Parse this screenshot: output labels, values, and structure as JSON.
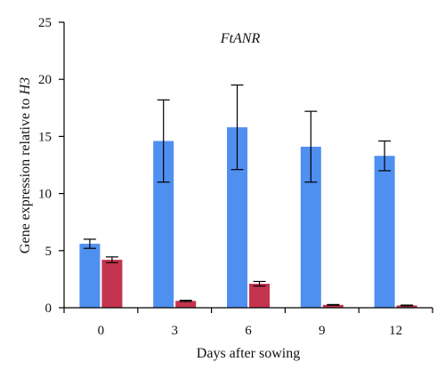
{
  "chart_data": {
    "type": "bar",
    "title": "FtANR",
    "xlabel": "Days after sowing",
    "ylabel_main": "Gene expression relative to ",
    "ylabel_italic": "H3",
    "categories": [
      "0",
      "3",
      "6",
      "9",
      "12"
    ],
    "ylim": [
      0,
      25
    ],
    "yticks": [
      "0",
      "5",
      "10",
      "15",
      "20",
      "25"
    ],
    "series": [
      {
        "color": "#4f8ff0",
        "values": [
          5.6,
          14.6,
          15.8,
          14.1,
          13.3
        ],
        "errors": [
          0.4,
          3.6,
          3.7,
          3.1,
          1.3
        ]
      },
      {
        "color": "#c4344f",
        "values": [
          4.2,
          0.6,
          2.1,
          0.25,
          0.2
        ],
        "errors": [
          0.25,
          0.05,
          0.2,
          0.03,
          0.03
        ]
      }
    ]
  }
}
